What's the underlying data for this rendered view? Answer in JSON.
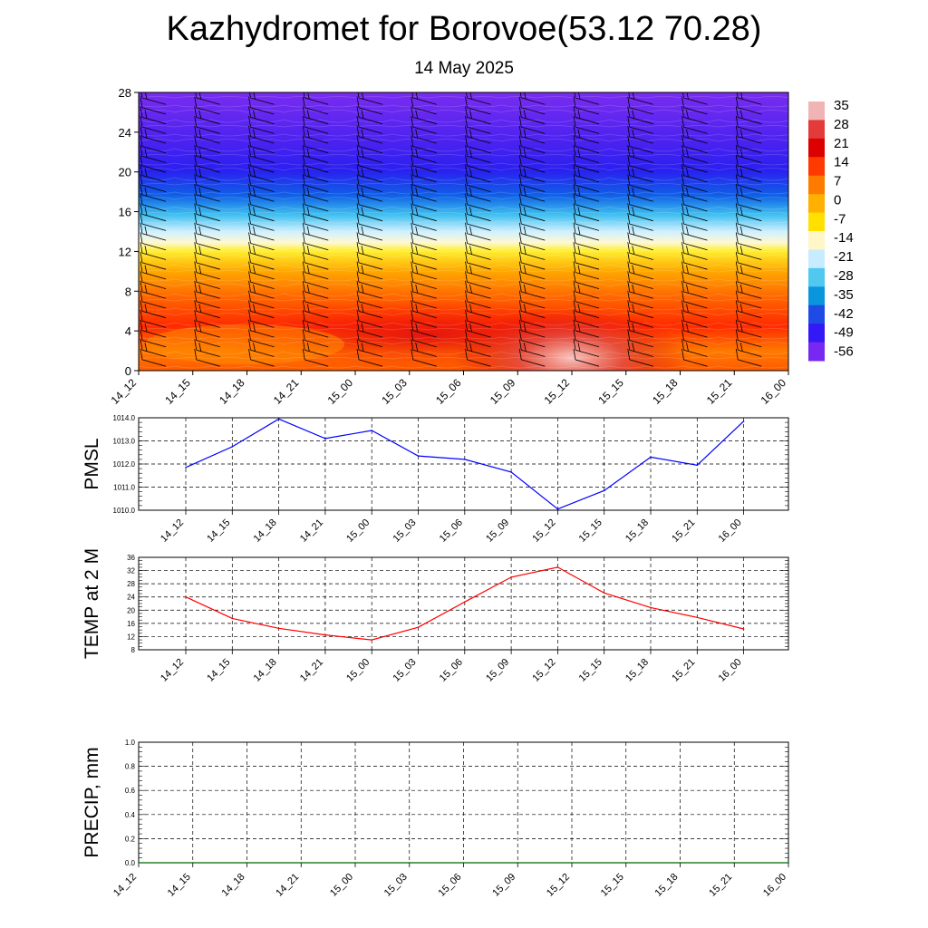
{
  "title": "Kazhydromet for Borovoe(53.12 70.28)",
  "subtitle": "14 May 2025",
  "chart_data": [
    {
      "type": "heatmap",
      "name": "temperature-cross-section",
      "xticks": [
        "14_12",
        "14_15",
        "14_18",
        "14_21",
        "15_00",
        "15_03",
        "15_06",
        "15_09",
        "15_12",
        "15_15",
        "15_18",
        "15_21",
        "16_00"
      ],
      "ylim": [
        0,
        28
      ],
      "yticks": [
        0,
        4,
        8,
        12,
        16,
        20,
        24,
        28
      ],
      "colorbar": {
        "labels": [
          "35",
          "28",
          "21",
          "14",
          "7",
          "0",
          "-7",
          "-14",
          "-21",
          "-28",
          "-35",
          "-42",
          "-49",
          "-56"
        ],
        "colors": [
          "#f0b4b4",
          "#e33a3a",
          "#dc0000",
          "#ff3a00",
          "#ff7b00",
          "#ffb000",
          "#ffe000",
          "#fff7c8",
          "#c8ecff",
          "#50c8f0",
          "#0a96dc",
          "#1e4be6",
          "#3219f5",
          "#7828f0"
        ]
      },
      "wind_barbs": true
    },
    {
      "type": "line",
      "ylabel": "PMSL",
      "categories": [
        "14_12",
        "14_15",
        "14_18",
        "14_21",
        "15_00",
        "15_03",
        "15_06",
        "15_09",
        "15_12",
        "15_15",
        "15_18",
        "15_21",
        "16_00"
      ],
      "ylim": [
        1010.0,
        1014.0
      ],
      "yticks": [
        "1010.0",
        "1011.0",
        "1012.0",
        "1013.0",
        "1014.0"
      ],
      "series": [
        {
          "color": "#0000ff",
          "values": [
            1011.85,
            1012.75,
            1013.95,
            1013.1,
            1013.45,
            1012.35,
            1012.2,
            1011.65,
            1010.05,
            1010.85,
            1012.3,
            1011.95,
            1013.85
          ]
        }
      ],
      "grid": true
    },
    {
      "type": "line",
      "ylabel": "TEMP at 2 M",
      "categories": [
        "14_12",
        "14_15",
        "14_18",
        "14_21",
        "15_00",
        "15_03",
        "15_06",
        "15_09",
        "15_12",
        "15_15",
        "15_18",
        "15_21",
        "16_00"
      ],
      "ylim": [
        8,
        36
      ],
      "yticks": [
        "8",
        "12",
        "16",
        "20",
        "24",
        "28",
        "32",
        "36"
      ],
      "series": [
        {
          "color": "#ff0000",
          "values": [
            24.0,
            17.5,
            14.5,
            12.5,
            11.0,
            14.8,
            22.5,
            30.0,
            33.0,
            25.2,
            20.8,
            17.8,
            14.3
          ]
        }
      ],
      "grid": true
    },
    {
      "type": "line",
      "ylabel": "PRECIP, mm",
      "categories": [
        "14_12",
        "14_15",
        "14_18",
        "14_21",
        "15_00",
        "15_03",
        "15_06",
        "15_09",
        "15_12",
        "15_15",
        "15_18",
        "15_21",
        "16_00"
      ],
      "ylim": [
        0.0,
        1.0
      ],
      "yticks": [
        "0.0",
        "0.2",
        "0.4",
        "0.6",
        "0.8",
        "1.0"
      ],
      "series": [
        {
          "color": "#006400",
          "values": [
            0,
            0,
            0,
            0,
            0,
            0,
            0,
            0,
            0,
            0,
            0,
            0,
            0
          ]
        }
      ],
      "grid": true
    }
  ]
}
